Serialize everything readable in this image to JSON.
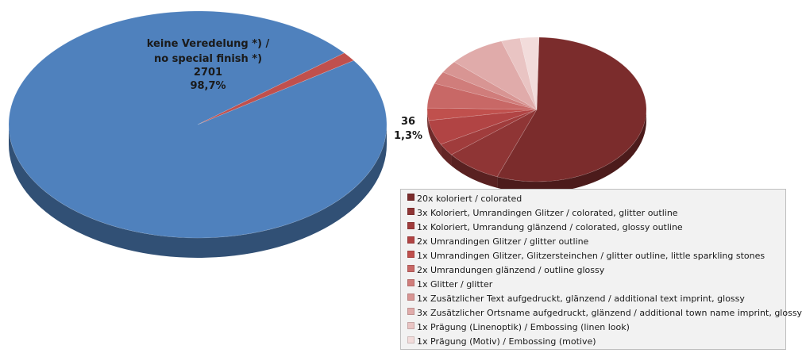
{
  "chart_data": [
    {
      "type": "pie",
      "slices": [
        {
          "label": "keine Veredelung *) / no special finish *)",
          "value": 2701,
          "percent": "98,7%",
          "color": "#4f81bd"
        },
        {
          "label": "",
          "value": 36,
          "percent": "1,3%",
          "color": "#c0504d"
        }
      ],
      "data_labels": [
        {
          "lines": [
            "keine Veredelung *) /",
            "no special finish *)",
            "2701",
            "98,7%"
          ]
        },
        {
          "lines": [
            "36",
            "1,3%"
          ]
        }
      ]
    },
    {
      "type": "pie",
      "slices": [
        {
          "label": "20x koloriert / colorated",
          "value": 20,
          "color": "#7b2c2c"
        },
        {
          "label": "3x Koloriert, Umrandingen Glitzer / colorated, glitter outline",
          "value": 3,
          "color": "#8f3535"
        },
        {
          "label": "1x Koloriert, Umrandung glänzend / colorated, glossy outline",
          "value": 1,
          "color": "#a03c3c"
        },
        {
          "label": "2x Umrandingen Glitzer / glitter outline",
          "value": 2,
          "color": "#b14444"
        },
        {
          "label": "1x Umrandingen Glitzer, Glitzersteinchen / glitter outline, little sparkling stones",
          "value": 1,
          "color": "#c0504d"
        },
        {
          "label": "2x Umrandungen glänzend / outline glossy",
          "value": 2,
          "color": "#c86866"
        },
        {
          "label": "1x Glitter / glitter",
          "value": 1,
          "color": "#d07d7b"
        },
        {
          "label": "1x Zusätzlicher Text aufgedruckt, glänzend / additional text imprint, glossy",
          "value": 1,
          "color": "#d89593"
        },
        {
          "label": "3x Zusätzlicher Ortsname aufgedruckt, glänzend / additional town name imprint, glossy",
          "value": 3,
          "color": "#e0abaa"
        },
        {
          "label": "1x Prägung (Linenoptik) / Embossing (linen look)",
          "value": 1,
          "color": "#e9c4c3"
        },
        {
          "label": "1x Prägung (Motiv) / Embossing (motive)",
          "value": 1,
          "color": "#f2dcdb"
        }
      ],
      "legend_placement": "bottom"
    }
  ]
}
